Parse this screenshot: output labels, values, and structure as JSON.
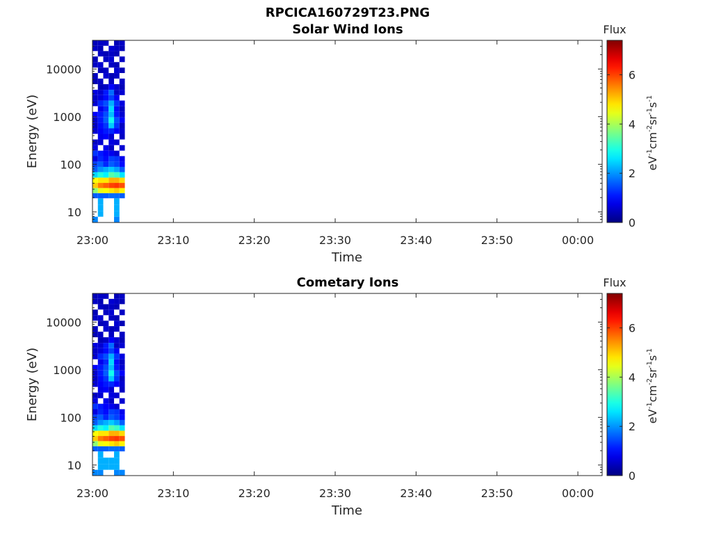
{
  "figure": {
    "title": "RPCICA160729T23.PNG"
  },
  "colorbar": {
    "label_main": "Flux",
    "range": [
      0,
      7.4
    ],
    "ticks": [
      "0",
      "2",
      "4",
      "6"
    ],
    "unit_parts": [
      "eV",
      "-1",
      "cm",
      "-2",
      "sr",
      "-1",
      "s",
      "-1"
    ],
    "colormap": "jet"
  },
  "chart_data": [
    {
      "type": "heatmap",
      "title": "Solar Wind Ions",
      "xlabel": "Time",
      "ylabel": "Energy (eV)",
      "y_scale": "log",
      "ylim": [
        6,
        40000
      ],
      "xlim": [
        "23:00",
        "00:03"
      ],
      "x_ticks": [
        "23:00",
        "23:10",
        "23:20",
        "23:30",
        "23:40",
        "23:50",
        "00:00"
      ],
      "y_ticks": [
        "10",
        "100",
        "1000",
        "10000"
      ],
      "data_time_span": [
        "23:00",
        "23:04"
      ],
      "grid": false,
      "cells": [
        {
          "e": 7,
          "v": [
            1.9,
            0,
            0,
            0,
            1.9,
            0
          ]
        },
        {
          "e": 9,
          "v": [
            0,
            2.2,
            0,
            0,
            2.2,
            0
          ]
        },
        {
          "e": 12,
          "v": [
            0,
            2.2,
            0,
            0,
            2.2,
            0
          ]
        },
        {
          "e": 17,
          "v": [
            0,
            2.2,
            0,
            0,
            2.2,
            0
          ]
        },
        {
          "e": 22,
          "v": [
            1.6,
            1.6,
            1.6,
            1.7,
            1.7,
            1.6
          ]
        },
        {
          "e": 28,
          "v": [
            3.8,
            4.5,
            4.6,
            4.8,
            5.0,
            4.7
          ]
        },
        {
          "e": 36,
          "v": [
            5.0,
            5.6,
            5.8,
            6.0,
            6.1,
            5.9
          ]
        },
        {
          "e": 46,
          "v": [
            4.6,
            4.8,
            4.8,
            5.2,
            5.2,
            4.9
          ]
        },
        {
          "e": 60,
          "v": [
            2.5,
            3.0,
            2.7,
            3.4,
            3.2,
            2.6
          ]
        },
        {
          "e": 78,
          "v": [
            1.6,
            2.0,
            2.2,
            2.4,
            2.1,
            1.6
          ]
        },
        {
          "e": 100,
          "v": [
            1.4,
            1.6,
            1.2,
            1.6,
            1.4,
            1.0
          ]
        },
        {
          "e": 130,
          "v": [
            0.7,
            1.2,
            1.0,
            1.4,
            1.3,
            0.8
          ]
        },
        {
          "e": 170,
          "v": [
            1.3,
            1.1,
            0.9,
            0.8,
            0.6,
            0
          ]
        },
        {
          "e": 220,
          "v": [
            0.7,
            0,
            0.8,
            0.5,
            0,
            0.6
          ]
        },
        {
          "e": 290,
          "v": [
            0.5,
            0.6,
            0,
            0.7,
            0.6,
            0
          ]
        },
        {
          "e": 380,
          "v": [
            0,
            0.8,
            0.9,
            0.6,
            0,
            0.5
          ]
        },
        {
          "e": 500,
          "v": [
            0.6,
            0.9,
            1.1,
            1.2,
            0.9,
            0.6
          ]
        },
        {
          "e": 650,
          "v": [
            0.5,
            1.0,
            1.3,
            2.4,
            1.3,
            0.5
          ]
        },
        {
          "e": 850,
          "v": [
            0.6,
            1.1,
            1.6,
            2.9,
            1.5,
            0.9
          ]
        },
        {
          "e": 1100,
          "v": [
            0.9,
            1.1,
            1.5,
            2.3,
            1.1,
            0.6
          ]
        },
        {
          "e": 1450,
          "v": [
            0,
            0.8,
            1.2,
            2.5,
            1.0,
            0.5
          ]
        },
        {
          "e": 1900,
          "v": [
            0.6,
            1.2,
            1.5,
            2.2,
            1.3,
            0.7
          ]
        },
        {
          "e": 2500,
          "v": [
            0.5,
            0.7,
            1.0,
            1.4,
            0.9,
            0
          ]
        },
        {
          "e": 3200,
          "v": [
            0.7,
            0.6,
            1.1,
            1.7,
            0.5,
            0.6
          ]
        },
        {
          "e": 4200,
          "v": [
            0,
            0.4,
            0.5,
            0.9,
            0.6,
            0.4
          ]
        },
        {
          "e": 5500,
          "v": [
            0.4,
            0.5,
            0,
            0.5,
            0,
            0.5
          ]
        },
        {
          "e": 7200,
          "v": [
            0.5,
            0,
            0.6,
            0.4,
            0.5,
            0
          ]
        },
        {
          "e": 9400,
          "v": [
            0,
            0.4,
            0.5,
            0,
            0.6,
            0.4
          ]
        },
        {
          "e": 12200,
          "v": [
            0.5,
            0.6,
            0,
            0.5,
            0.4,
            0
          ]
        },
        {
          "e": 16000,
          "v": [
            0.4,
            0,
            0.5,
            0.6,
            0,
            0.5
          ]
        },
        {
          "e": 21000,
          "v": [
            0,
            0.5,
            0.4,
            0.5,
            0.4,
            0
          ]
        },
        {
          "e": 27000,
          "v": [
            0.5,
            0.4,
            0,
            0.6,
            0.5,
            0.4
          ]
        },
        {
          "e": 35000,
          "v": [
            0.4,
            0.5,
            0.5,
            0,
            0.4,
            0.5
          ]
        }
      ]
    },
    {
      "type": "heatmap",
      "title": "Cometary Ions",
      "xlabel": "Time",
      "ylabel": "Energy (eV)",
      "y_scale": "log",
      "ylim": [
        6,
        40000
      ],
      "xlim": [
        "23:00",
        "00:03"
      ],
      "x_ticks": [
        "23:00",
        "23:10",
        "23:20",
        "23:30",
        "23:40",
        "23:50",
        "00:00"
      ],
      "y_ticks": [
        "10",
        "100",
        "1000",
        "10000"
      ],
      "data_time_span": [
        "23:00",
        "23:04"
      ],
      "grid": false,
      "cells": [
        {
          "e": 7,
          "v": [
            1.9,
            1.9,
            0,
            0,
            1.9,
            1.9
          ]
        },
        {
          "e": 9,
          "v": [
            0,
            2.2,
            2.2,
            2.2,
            2.2,
            0
          ]
        },
        {
          "e": 12,
          "v": [
            0,
            2.2,
            2.2,
            2.2,
            2.2,
            0
          ]
        },
        {
          "e": 17,
          "v": [
            0,
            2.2,
            0,
            0,
            2.2,
            0
          ]
        },
        {
          "e": 22,
          "v": [
            1.6,
            1.6,
            1.6,
            1.7,
            1.7,
            1.6
          ]
        },
        {
          "e": 28,
          "v": [
            3.8,
            4.5,
            4.6,
            4.8,
            5.0,
            4.7
          ]
        },
        {
          "e": 36,
          "v": [
            5.0,
            5.6,
            5.8,
            6.0,
            6.1,
            5.9
          ]
        },
        {
          "e": 46,
          "v": [
            4.6,
            4.8,
            4.8,
            5.2,
            5.2,
            4.9
          ]
        },
        {
          "e": 60,
          "v": [
            2.5,
            3.0,
            2.7,
            3.4,
            3.2,
            2.6
          ]
        },
        {
          "e": 78,
          "v": [
            1.6,
            2.0,
            2.2,
            2.4,
            2.1,
            1.6
          ]
        },
        {
          "e": 100,
          "v": [
            1.4,
            1.6,
            1.2,
            1.6,
            1.4,
            1.0
          ]
        },
        {
          "e": 130,
          "v": [
            0.7,
            1.2,
            1.0,
            1.4,
            1.3,
            0.8
          ]
        },
        {
          "e": 170,
          "v": [
            1.3,
            1.1,
            0.9,
            0.8,
            0.6,
            0
          ]
        },
        {
          "e": 220,
          "v": [
            0.7,
            0,
            0.8,
            0.5,
            0,
            0.6
          ]
        },
        {
          "e": 290,
          "v": [
            0.5,
            0.6,
            0,
            0.7,
            0.6,
            0
          ]
        },
        {
          "e": 380,
          "v": [
            0,
            0.8,
            0.9,
            0.6,
            0,
            0.5
          ]
        },
        {
          "e": 500,
          "v": [
            0.6,
            0.9,
            1.1,
            1.2,
            0.9,
            0.6
          ]
        },
        {
          "e": 650,
          "v": [
            0.5,
            1.0,
            1.3,
            2.4,
            1.3,
            0.5
          ]
        },
        {
          "e": 850,
          "v": [
            0.6,
            1.1,
            1.6,
            2.9,
            1.5,
            0.9
          ]
        },
        {
          "e": 1100,
          "v": [
            0.9,
            1.1,
            1.5,
            2.3,
            1.1,
            0.6
          ]
        },
        {
          "e": 1450,
          "v": [
            0,
            0.8,
            1.2,
            2.5,
            1.0,
            0.5
          ]
        },
        {
          "e": 1900,
          "v": [
            0.6,
            1.2,
            1.5,
            2.2,
            1.3,
            0.7
          ]
        },
        {
          "e": 2500,
          "v": [
            0.5,
            0.7,
            1.0,
            1.4,
            0.9,
            0
          ]
        },
        {
          "e": 3200,
          "v": [
            0.7,
            0.6,
            1.1,
            1.7,
            0.5,
            0.6
          ]
        },
        {
          "e": 4200,
          "v": [
            0,
            0.4,
            0.5,
            0.9,
            0.6,
            0.4
          ]
        },
        {
          "e": 5500,
          "v": [
            0.4,
            0.5,
            0,
            0.5,
            0,
            0.5
          ]
        },
        {
          "e": 7200,
          "v": [
            0.5,
            0,
            0.6,
            0.4,
            0.5,
            0
          ]
        },
        {
          "e": 9400,
          "v": [
            0,
            0.4,
            0.5,
            0,
            0.6,
            0.4
          ]
        },
        {
          "e": 12200,
          "v": [
            0.5,
            0.6,
            0,
            0.5,
            0.4,
            0
          ]
        },
        {
          "e": 16000,
          "v": [
            0.4,
            0,
            0.5,
            0.6,
            0,
            0.5
          ]
        },
        {
          "e": 21000,
          "v": [
            0,
            0.5,
            0.4,
            0.5,
            0.4,
            0
          ]
        },
        {
          "e": 27000,
          "v": [
            0.5,
            0.4,
            0,
            0.6,
            0.5,
            0.4
          ]
        },
        {
          "e": 35000,
          "v": [
            0.4,
            0.5,
            0.5,
            0,
            0.4,
            0.5
          ]
        }
      ]
    }
  ]
}
